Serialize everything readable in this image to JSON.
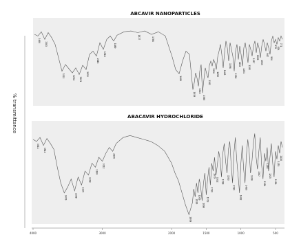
{
  "y_axis_label": "% transmittance",
  "chart_data": [
    {
      "type": "line",
      "title": "ABCAVIR NANOPARTICLES",
      "ylabel": "% transmittance",
      "xlabel": "",
      "xlim": [
        4000,
        400
      ],
      "ylim": [
        0,
        100
      ],
      "grid": false,
      "legend": "none",
      "series": [
        {
          "x": [
            4000,
            3950,
            3900,
            3850,
            3800,
            3750,
            3700,
            3650,
            3600,
            3550,
            3500,
            3450,
            3400,
            3350,
            3300,
            3250,
            3200,
            3150,
            3100,
            3050,
            3000,
            2950,
            2900,
            2850,
            2800,
            2700,
            2600,
            2500,
            2400,
            2300,
            2200,
            2100,
            2000,
            1950,
            1900,
            1850,
            1800,
            1750,
            1700,
            1680,
            1660,
            1640,
            1620,
            1600,
            1580,
            1560,
            1540,
            1520,
            1500,
            1480,
            1460,
            1440,
            1420,
            1400,
            1380,
            1360,
            1340,
            1320,
            1300,
            1280,
            1260,
            1240,
            1220,
            1200,
            1180,
            1160,
            1140,
            1120,
            1100,
            1080,
            1060,
            1040,
            1020,
            1000,
            980,
            960,
            940,
            920,
            900,
            880,
            860,
            840,
            820,
            800,
            780,
            760,
            740,
            720,
            700,
            680,
            660,
            640,
            620,
            600,
            580,
            560,
            540,
            520,
            500,
            480,
            460,
            440,
            420,
            400
          ],
          "y": [
            82,
            80,
            85,
            76,
            84,
            78,
            70,
            54,
            38,
            46,
            41,
            36,
            42,
            34,
            45,
            40,
            58,
            62,
            56,
            72,
            64,
            76,
            80,
            74,
            81,
            85,
            86,
            84,
            86,
            82,
            85,
            80,
            55,
            40,
            35,
            50,
            62,
            58,
            16,
            24,
            36,
            30,
            20,
            38,
            46,
            12,
            28,
            42,
            35,
            30,
            45,
            50,
            44,
            52,
            48,
            40,
            55,
            62,
            70,
            58,
            42,
            60,
            74,
            66,
            50,
            72,
            64,
            56,
            38,
            62,
            70,
            52,
            68,
            58,
            44,
            66,
            72,
            60,
            48,
            70,
            64,
            56,
            68,
            74,
            60,
            72,
            66,
            54,
            68,
            76,
            70,
            62,
            72,
            66,
            58,
            74,
            80,
            72,
            76,
            70,
            78,
            74,
            80,
            76
          ]
        }
      ],
      "peak_labels": [
        "3466",
        "3383",
        "3322",
        "3294",
        "3201",
        "2952",
        "2846",
        "1918",
        "1880",
        "1837",
        "1708",
        "1689",
        "1650",
        "1624",
        "1590",
        "1562",
        "1536",
        "1490",
        "1445",
        "1398",
        "1358",
        "1282",
        "1251",
        "1203",
        "1157",
        "1099",
        "1055",
        "987",
        "956",
        "870",
        "824",
        "771",
        "727",
        "691",
        "640",
        "582",
        "536",
        "486",
        "431"
      ]
    },
    {
      "type": "line",
      "title": "ABACAVIR HYDROCHLORIDE",
      "ylabel": "% transmittance",
      "xlabel": "",
      "xlim": [
        4000,
        400
      ],
      "ylim": [
        0,
        100
      ],
      "grid": false,
      "legend": "none",
      "x_tick_labels": [
        "4000",
        "3000",
        "2000",
        "1500",
        "1000",
        "500"
      ],
      "series": [
        {
          "x": [
            4000,
            3950,
            3900,
            3850,
            3800,
            3750,
            3700,
            3650,
            3600,
            3550,
            3500,
            3450,
            3400,
            3350,
            3300,
            3250,
            3200,
            3150,
            3100,
            3050,
            3000,
            2950,
            2900,
            2850,
            2800,
            2700,
            2600,
            2500,
            2400,
            2300,
            2200,
            2100,
            2000,
            1950,
            1900,
            1850,
            1800,
            1750,
            1700,
            1680,
            1660,
            1640,
            1620,
            1600,
            1580,
            1560,
            1540,
            1520,
            1500,
            1480,
            1460,
            1440,
            1420,
            1400,
            1380,
            1360,
            1340,
            1320,
            1300,
            1280,
            1260,
            1240,
            1220,
            1200,
            1180,
            1160,
            1140,
            1120,
            1100,
            1080,
            1060,
            1040,
            1020,
            1000,
            980,
            960,
            940,
            920,
            900,
            880,
            860,
            840,
            820,
            800,
            780,
            760,
            740,
            720,
            700,
            680,
            660,
            640,
            620,
            600,
            580,
            560,
            540,
            520,
            500,
            480,
            460,
            440,
            420,
            400
          ],
          "y": [
            84,
            82,
            86,
            78,
            85,
            80,
            74,
            56,
            40,
            30,
            36,
            44,
            32,
            46,
            38,
            52,
            48,
            60,
            56,
            66,
            62,
            70,
            76,
            72,
            80,
            86,
            88,
            86,
            84,
            82,
            78,
            72,
            60,
            50,
            42,
            30,
            18,
            8,
            20,
            34,
            26,
            40,
            30,
            44,
            36,
            22,
            40,
            50,
            28,
            44,
            56,
            38,
            60,
            52,
            66,
            48,
            58,
            72,
            64,
            46,
            70,
            80,
            62,
            50,
            74,
            82,
            58,
            40,
            70,
            86,
            64,
            48,
            30,
            60,
            78,
            54,
            40,
            68,
            84,
            72,
            50,
            62,
            80,
            90,
            66,
            54,
            72,
            86,
            58,
            44,
            70,
            62,
            76,
            52,
            66,
            80,
            60,
            46,
            72,
            64,
            78,
            70,
            82,
            76
          ]
        }
      ],
      "peak_labels": [
        "3611",
        "3542",
        "3470",
        "3398",
        "3335",
        "3268",
        "3190",
        "3112",
        "2965",
        "2889",
        "2820",
        "1950",
        "1890",
        "1763",
        "1716",
        "1679",
        "1632",
        "1598",
        "1563",
        "1519",
        "1482",
        "1439",
        "1390",
        "1347",
        "1306",
        "1268",
        "1225",
        "1190",
        "1153",
        "1118",
        "1086",
        "1034",
        "1004",
        "965",
        "927",
        "874",
        "838",
        "793",
        "752",
        "705",
        "668",
        "611",
        "560",
        "509",
        "453"
      ]
    }
  ]
}
